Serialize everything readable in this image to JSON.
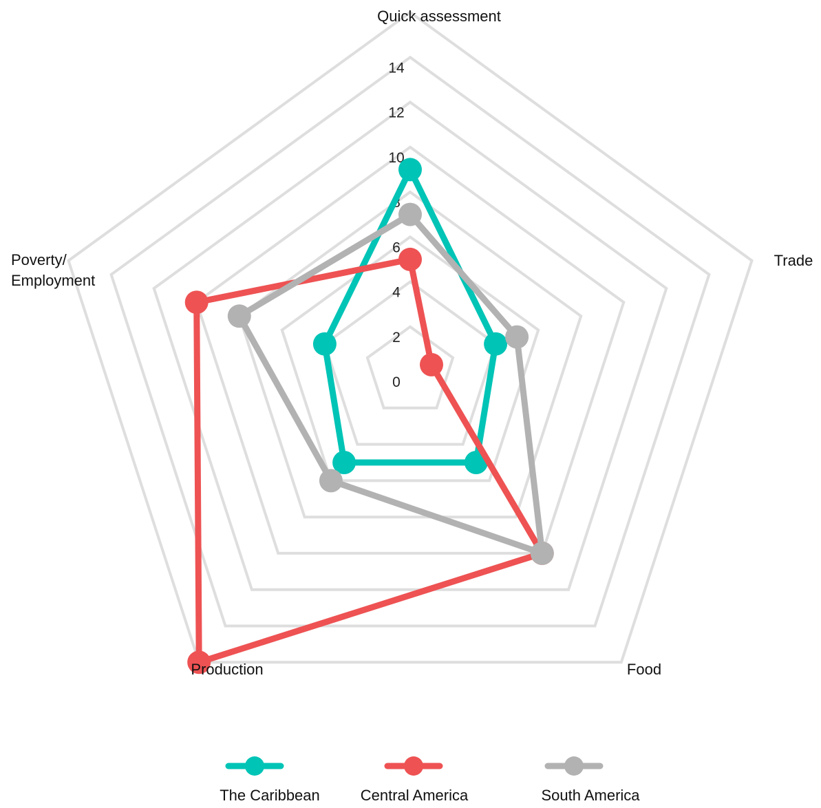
{
  "chart_data": {
    "type": "radar",
    "axes": [
      "Quick assessment",
      "Trade",
      "Food",
      "Production",
      "Poverty/\nEmployment"
    ],
    "r_ticks": [
      "0",
      "2",
      "4",
      "6",
      "8",
      "10",
      "12",
      "14"
    ],
    "r_range": [
      0,
      16
    ],
    "grid": true,
    "legend_position": "bottom",
    "series": [
      {
        "name": "The Caribbean",
        "color": "#00C4B6",
        "values": [
          9,
          4,
          5,
          5,
          4
        ]
      },
      {
        "name": "Central America",
        "color": "#EE5253",
        "values": [
          5,
          1,
          10,
          16,
          10
        ]
      },
      {
        "name": "South America",
        "color": "#B2B2B2",
        "values": [
          7,
          5,
          10,
          6,
          8
        ]
      }
    ]
  },
  "colors": {
    "grid": "#DEDEDE",
    "text": "#111111"
  }
}
